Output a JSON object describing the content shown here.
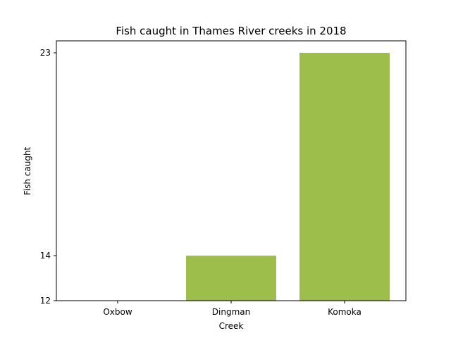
{
  "chart_data": {
    "type": "bar",
    "title": "Fish caught in Thames River creeks in 2018",
    "xlabel": "Creek",
    "ylabel": "Fish caught",
    "categories": [
      "Oxbow",
      "Dingman",
      "Komoka"
    ],
    "values": [
      12,
      14,
      23
    ],
    "ylim": [
      12,
      23
    ],
    "yticks": [
      {
        "value": 12,
        "label": "12"
      },
      {
        "value": 14,
        "label": "14"
      },
      {
        "value": 23,
        "label": "23"
      }
    ],
    "bar_color": "#9dbe4a",
    "grid": false,
    "legend": "none"
  }
}
